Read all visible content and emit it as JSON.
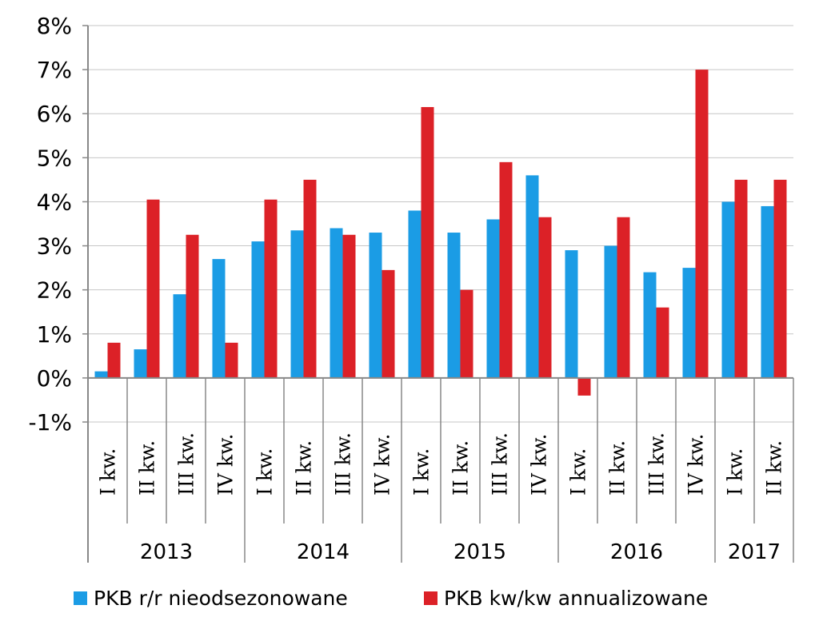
{
  "chart_data": {
    "type": "bar",
    "title": "",
    "xlabel": "",
    "ylabel": "",
    "ylim": [
      -1,
      8
    ],
    "yticks": [
      "-1%",
      "0%",
      "1%",
      "2%",
      "3%",
      "4%",
      "5%",
      "6%",
      "7%",
      "8%"
    ],
    "grid": true,
    "legend_position": "bottom",
    "categories": [
      "I kw.",
      "II kw.",
      "III kw.",
      "IV kw.",
      "I kw.",
      "II kw.",
      "III kw.",
      "IV kw.",
      "I kw.",
      "II kw.",
      "III kw.",
      "IV kw.",
      "I kw.",
      "II kw.",
      "III kw.",
      "IV kw.",
      "I kw.",
      "II kw."
    ],
    "groups": [
      {
        "label": "2013",
        "count": 4
      },
      {
        "label": "2014",
        "count": 4
      },
      {
        "label": "2015",
        "count": 4
      },
      {
        "label": "2016",
        "count": 4
      },
      {
        "label": "2017",
        "count": 2
      }
    ],
    "series": [
      {
        "name": "PKB r/r nieodsezonowane",
        "color": "#1b9ce5",
        "values": [
          0.15,
          0.65,
          1.9,
          2.7,
          3.1,
          3.35,
          3.4,
          3.3,
          3.8,
          3.3,
          3.6,
          4.6,
          2.9,
          3.0,
          2.4,
          2.5,
          4.0,
          3.9
        ]
      },
      {
        "name": "PKB kw/kw annualizowane",
        "color": "#dc2127",
        "values": [
          0.8,
          4.05,
          3.25,
          0.8,
          4.05,
          4.5,
          3.25,
          2.45,
          6.15,
          2.0,
          4.9,
          3.65,
          -0.4,
          3.65,
          1.6,
          7.0,
          4.5,
          4.5
        ]
      }
    ]
  }
}
